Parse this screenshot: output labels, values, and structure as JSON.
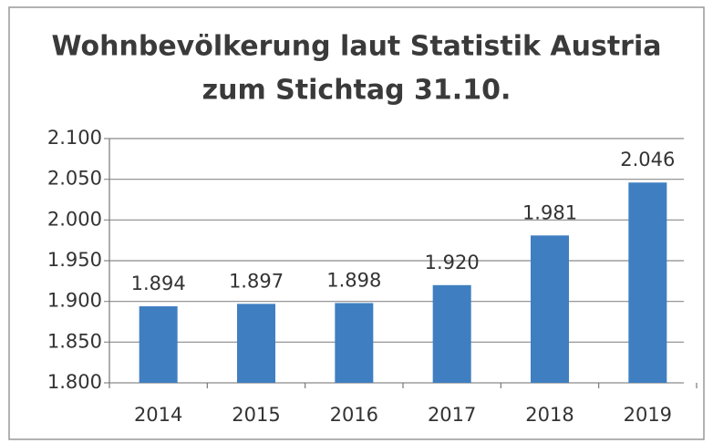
{
  "chart_data": {
    "type": "bar",
    "title": [
      "Wohnbevölkerung laut Statistik Austria",
      "zum Stichtag 31.10."
    ],
    "categories": [
      "2014",
      "2015",
      "2016",
      "2017",
      "2018",
      "2019"
    ],
    "values": [
      1894,
      1897,
      1898,
      1920,
      1981,
      2046
    ],
    "value_labels": [
      "1.894",
      "1.897",
      "1.898",
      "1.920",
      "1.981",
      "2.046"
    ],
    "color": "#3f7fc1",
    "ylim": [
      1800,
      2100
    ],
    "yticks": [
      {
        "value": 1800,
        "label": "1.800"
      },
      {
        "value": 1850,
        "label": "1.850"
      },
      {
        "value": 1900,
        "label": "1.900"
      },
      {
        "value": 1950,
        "label": "1.950"
      },
      {
        "value": 2000,
        "label": "2.000"
      },
      {
        "value": 2050,
        "label": "2.050"
      },
      {
        "value": 2100,
        "label": "2.100"
      }
    ],
    "grid": true
  }
}
